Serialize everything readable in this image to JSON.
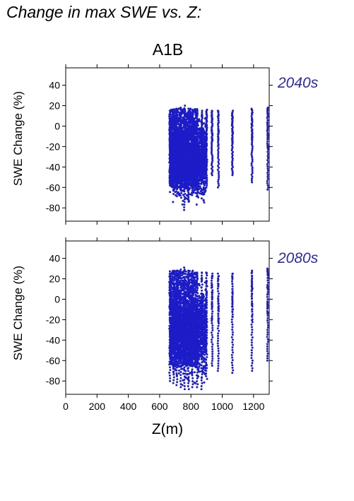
{
  "title": "Change in max SWE vs. Z:",
  "scenario": "A1B",
  "colors": {
    "points": "#1c1cc8",
    "period_label": "#2a2ab0",
    "axis": "#000000"
  },
  "chart_data": [
    {
      "type": "scatter",
      "period": "2040s",
      "xlabel": "Z(m)",
      "ylabel": "SWE Change (%)",
      "xlim": [
        0,
        1300
      ],
      "ylim": [
        -93,
        57
      ],
      "xticks": [
        0,
        200,
        400,
        600,
        800,
        1000,
        1200
      ],
      "yticks": [
        40,
        20,
        0,
        -20,
        -40,
        -60,
        -80
      ],
      "x_tick_labels_shown": false,
      "dense_band": {
        "x": [
          665,
          900
        ],
        "y_min_approx": -80,
        "y_max_approx": 17
      },
      "columns": [
        {
          "x": 665,
          "min": -58,
          "max": 15
        },
        {
          "x": 690,
          "min": -62,
          "max": 16
        },
        {
          "x": 710,
          "min": -66,
          "max": 17
        },
        {
          "x": 735,
          "min": -70,
          "max": 18
        },
        {
          "x": 760,
          "min": -82,
          "max": 20
        },
        {
          "x": 785,
          "min": -74,
          "max": 17
        },
        {
          "x": 810,
          "min": -65,
          "max": 16
        },
        {
          "x": 840,
          "min": -62,
          "max": 16
        },
        {
          "x": 870,
          "min": -55,
          "max": 15
        },
        {
          "x": 900,
          "min": -60,
          "max": 16
        },
        {
          "x": 935,
          "min": -48,
          "max": 15
        },
        {
          "x": 975,
          "min": -60,
          "max": 15
        },
        {
          "x": 1065,
          "min": -48,
          "max": 15
        },
        {
          "x": 1190,
          "min": -55,
          "max": 17
        },
        {
          "x": 1290,
          "min": -62,
          "max": 18
        }
      ]
    },
    {
      "type": "scatter",
      "period": "2080s",
      "xlabel": "Z(m)",
      "ylabel": "SWE Change (%)",
      "xlim": [
        0,
        1300
      ],
      "ylim": [
        -93,
        57
      ],
      "xticks": [
        0,
        200,
        400,
        600,
        800,
        1000,
        1200
      ],
      "yticks": [
        40,
        20,
        0,
        -20,
        -40,
        -60,
        -80
      ],
      "x_tick_labels_shown": true,
      "dense_band": {
        "x": [
          665,
          900
        ],
        "y_min_approx": -88,
        "y_max_approx": 28
      },
      "columns": [
        {
          "x": 665,
          "min": -80,
          "max": 25
        },
        {
          "x": 690,
          "min": -82,
          "max": 27
        },
        {
          "x": 710,
          "min": -84,
          "max": 28
        },
        {
          "x": 735,
          "min": -86,
          "max": 29
        },
        {
          "x": 760,
          "min": -88,
          "max": 31
        },
        {
          "x": 785,
          "min": -88,
          "max": 28
        },
        {
          "x": 810,
          "min": -86,
          "max": 27
        },
        {
          "x": 840,
          "min": -86,
          "max": 26
        },
        {
          "x": 870,
          "min": -88,
          "max": 26
        },
        {
          "x": 900,
          "min": -78,
          "max": 26
        },
        {
          "x": 935,
          "min": -65,
          "max": 25
        },
        {
          "x": 975,
          "min": -70,
          "max": 25
        },
        {
          "x": 1065,
          "min": -72,
          "max": 25
        },
        {
          "x": 1190,
          "min": -70,
          "max": 28
        },
        {
          "x": 1290,
          "min": -60,
          "max": 30
        }
      ]
    }
  ]
}
